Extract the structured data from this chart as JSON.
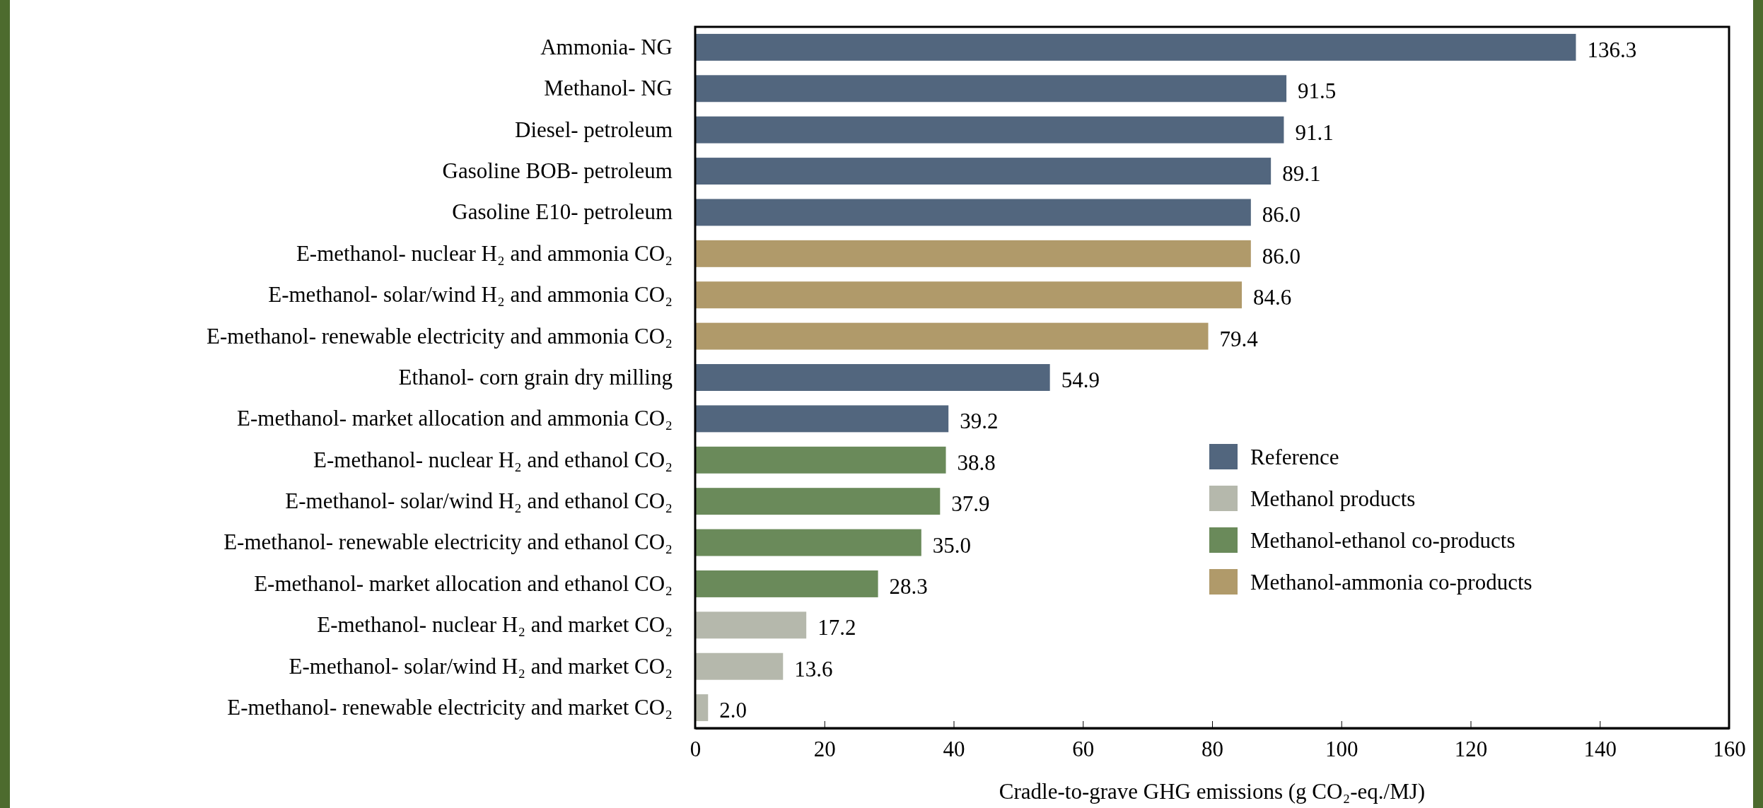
{
  "chart_data": {
    "type": "bar",
    "orientation": "horizontal",
    "xlabel": "Cradle-to-grave GHG emissions (g CO₂-eq./MJ)",
    "categories": [
      "Ammonia- NG",
      "Methanol- NG",
      "Diesel- petroleum",
      "Gasoline BOB- petroleum",
      "Gasoline E10- petroleum",
      "E-methanol- nuclear H₂ and ammonia CO₂",
      "E-methanol- solar/wind H₂ and ammonia CO₂",
      "E-methanol- renewable electricity and ammonia CO₂",
      "Ethanol- corn grain dry milling",
      "E-methanol- market allocation and ammonia CO₂",
      "E-methanol- nuclear H₂ and ethanol CO₂",
      "E-methanol- solar/wind H₂ and ethanol CO₂",
      "E-methanol- renewable electricity and ethanol CO₂",
      "E-methanol- market allocation and ethanol CO₂",
      "E-methanol- nuclear H₂ and market CO₂",
      "E-methanol- solar/wind H₂ and market CO₂",
      "E-methanol- renewable electricity and market CO₂"
    ],
    "series": [
      {
        "name": "Reference",
        "color": "#52667e",
        "values": [
          136.3,
          91.5,
          91.1,
          89.1,
          86.0,
          null,
          null,
          null,
          54.9,
          39.2,
          null,
          null,
          null,
          null,
          null,
          null,
          null
        ],
        "value_labels": [
          "136.3",
          "91.5",
          "91.1",
          "89.1",
          "86.0",
          null,
          null,
          null,
          "54.9",
          "39.2",
          null,
          null,
          null,
          null,
          null,
          null,
          null
        ]
      },
      {
        "name": "Methanol products",
        "color": "#b5b8ac",
        "values": [
          null,
          null,
          null,
          null,
          null,
          null,
          null,
          null,
          null,
          null,
          null,
          null,
          null,
          null,
          17.2,
          13.6,
          2.0
        ],
        "value_labels": [
          null,
          null,
          null,
          null,
          null,
          null,
          null,
          null,
          null,
          null,
          null,
          null,
          null,
          null,
          "17.2",
          "13.6",
          "2.0"
        ]
      },
      {
        "name": "Methanol-ethanol co-products",
        "color": "#6a8a5a",
        "values": [
          null,
          null,
          null,
          null,
          null,
          null,
          null,
          null,
          null,
          null,
          38.8,
          37.9,
          35.0,
          28.3,
          null,
          null,
          null
        ],
        "value_labels": [
          null,
          null,
          null,
          null,
          null,
          null,
          null,
          null,
          null,
          null,
          "38.8",
          "37.9",
          "35.0",
          "28.3",
          null,
          null,
          null
        ]
      },
      {
        "name": "Methanol-ammonia co-products",
        "color": "#b09a6a",
        "values": [
          null,
          null,
          null,
          null,
          null,
          86.0,
          84.6,
          79.4,
          null,
          null,
          null,
          null,
          null,
          null,
          null,
          null,
          null
        ],
        "value_labels": [
          null,
          null,
          null,
          null,
          null,
          "86.0",
          "84.6",
          "79.4",
          null,
          null,
          null,
          null,
          null,
          null,
          null,
          null,
          null
        ]
      }
    ],
    "xlim": [
      0,
      160
    ],
    "xticks": [
      0,
      20,
      40,
      60,
      80,
      100,
      120,
      140,
      160
    ],
    "grid": false,
    "legend": "bottom right"
  }
}
